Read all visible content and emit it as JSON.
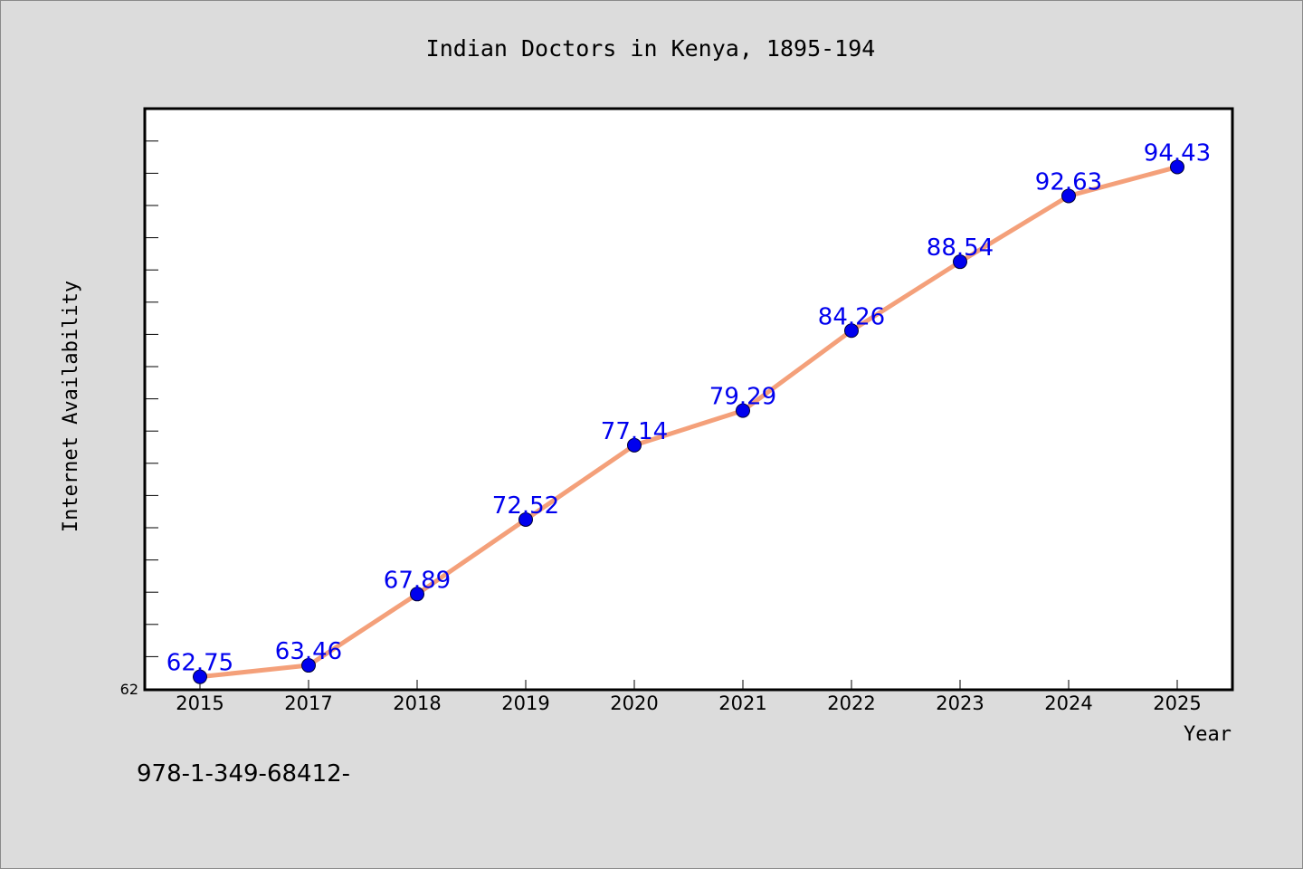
{
  "chart_data": {
    "type": "line",
    "title": "Indian Doctors in Kenya, 1895-194",
    "xlabel": "Year",
    "ylabel": "Internet Availability",
    "categories": [
      "2015",
      "2017",
      "2018",
      "2019",
      "2020",
      "2021",
      "2022",
      "2023",
      "2024",
      "2025"
    ],
    "values": [
      62.75,
      63.46,
      67.89,
      72.52,
      77.14,
      79.29,
      84.26,
      88.54,
      92.63,
      94.43
    ],
    "data_labels": [
      "62.75",
      "63.46",
      "67.89",
      "72.52",
      "77.14",
      "79.29",
      "84.26",
      "88.54",
      "92.63",
      "94.43"
    ],
    "ylim": [
      62,
      98
    ],
    "y_tick_labels": [
      "62"
    ],
    "grid": false,
    "legend": "none",
    "line_color": "#f4a07a",
    "marker_color": "#0000ee",
    "label_color": "#0000ee"
  },
  "footer_text": "978-1-349-68412-"
}
